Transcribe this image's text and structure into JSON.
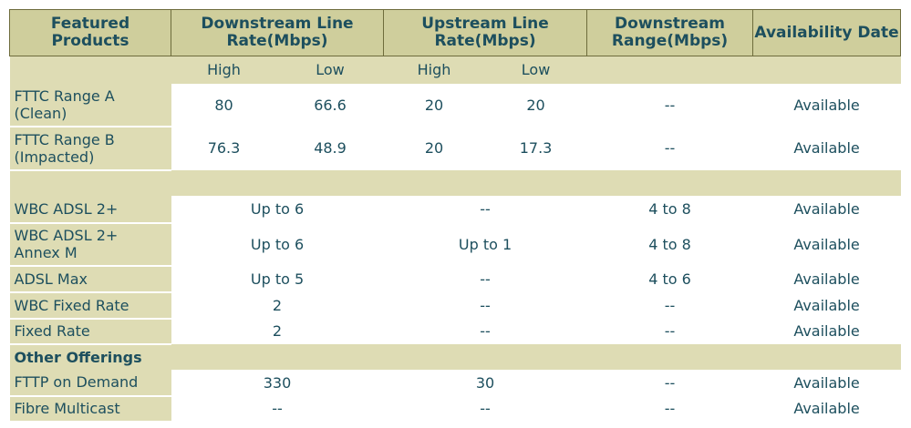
{
  "header": {
    "columns": [
      "Featured Products",
      "Downstream Line Rate(Mbps)",
      "Upstream Line Rate(Mbps)",
      "Downstream Range(Mbps)",
      "Availability Date"
    ]
  },
  "subheader": [
    "High",
    "Low",
    "High",
    "Low"
  ],
  "groups": [
    {
      "rows": [
        {
          "label": "FTTC Range A (Clean)",
          "cells": [
            "80",
            "66.6",
            "20",
            "20",
            "--",
            "Available"
          ]
        },
        {
          "label": "FTTC Range B (Impacted)",
          "cells": [
            "76.3",
            "48.9",
            "20",
            "17.3",
            "--",
            "Available"
          ]
        }
      ]
    },
    {
      "rows": [
        {
          "label": "WBC ADSL 2+",
          "cells": [
            "Up to 6",
            "--",
            "4 to 8",
            "Available"
          ]
        },
        {
          "label": "WBC ADSL 2+ Annex M",
          "cells": [
            "Up to 6",
            "Up to 1",
            "4 to 8",
            "Available"
          ]
        },
        {
          "label": "ADSL Max",
          "cells": [
            "Up to 5",
            "--",
            "4 to 6",
            "Available"
          ]
        },
        {
          "label": "WBC Fixed Rate",
          "cells": [
            "2",
            "--",
            "--",
            "Available"
          ]
        },
        {
          "label": "Fixed Rate",
          "cells": [
            "2",
            "--",
            "--",
            "Available"
          ]
        }
      ]
    },
    {
      "heading": "Other Offerings",
      "rows": [
        {
          "label": "FTTP on Demand",
          "cells": [
            "330",
            "30",
            "--",
            "Available"
          ]
        },
        {
          "label": "Fibre Multicast",
          "cells": [
            "--",
            "--",
            "--",
            "Available"
          ]
        }
      ]
    }
  ]
}
